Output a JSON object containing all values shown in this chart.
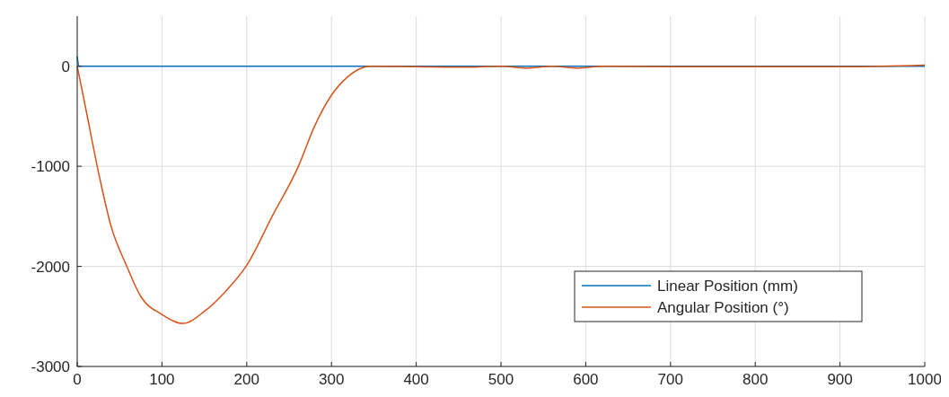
{
  "chart_data": {
    "type": "line",
    "x": [
      0,
      2,
      100,
      200,
      300,
      400,
      500,
      600,
      700,
      800,
      900,
      1000
    ],
    "xlim": [
      0,
      1000
    ],
    "xticks": [
      0,
      100,
      200,
      300,
      400,
      500,
      600,
      700,
      800,
      900,
      1000
    ],
    "ylim": [
      -3000,
      500
    ],
    "yticks": [
      -3000,
      -2000,
      -1000,
      0
    ],
    "grid": true,
    "legend": "bottom right",
    "series": [
      {
        "name": "Linear Position (mm)",
        "color": "#0072bd",
        "values": [
          100,
          0,
          0,
          0,
          0,
          0,
          0,
          0,
          0,
          0,
          0,
          0
        ]
      },
      {
        "name": "Angular Position (°)",
        "color": "#d95319",
        "x": [
          0,
          10,
          25,
          40,
          58,
          75,
          100,
          125,
          150,
          175,
          200,
          230,
          261,
          280,
          300,
          320,
          335,
          345,
          400,
          460,
          500,
          530,
          560,
          590,
          620,
          700,
          800,
          900,
          1000
        ],
        "values": [
          0,
          -420,
          -1056,
          -1600,
          -1990,
          -2300,
          -2480,
          -2570,
          -2450,
          -2250,
          -1990,
          -1500,
          -1000,
          -600,
          -290,
          -100,
          -20,
          0,
          -5,
          -10,
          0,
          -20,
          0,
          -20,
          0,
          -5,
          -5,
          -5,
          10
        ]
      }
    ]
  }
}
